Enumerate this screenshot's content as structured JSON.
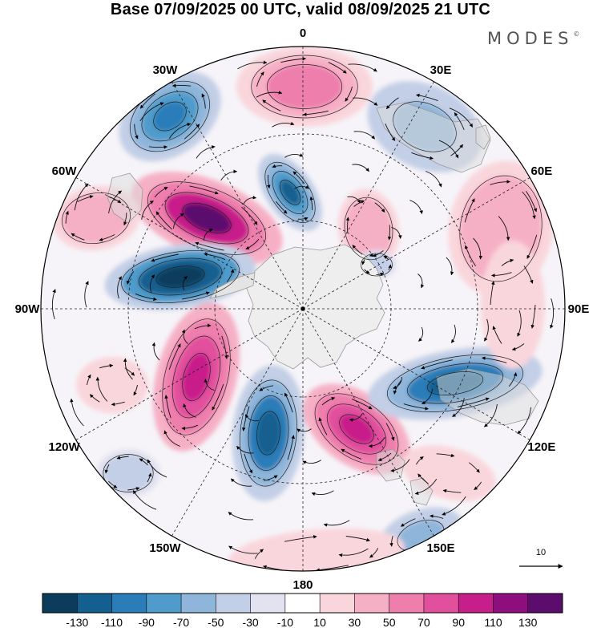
{
  "title": "Base 07/09/2025 00 UTC, valid 08/09/2025 21 UTC",
  "brand": "MODES",
  "brand_mark": "©",
  "longitude_labels": [
    "0",
    "30E",
    "60E",
    "90E",
    "120E",
    "150E",
    "180",
    "150W",
    "120W",
    "90W",
    "60W",
    "30W"
  ],
  "reference_vector_value": "10",
  "colorbar": {
    "labels": [
      "-130",
      "-110",
      "-90",
      "-70",
      "-50",
      "-30",
      "-10",
      "10",
      "30",
      "50",
      "70",
      "90",
      "110",
      "130"
    ],
    "colors": [
      "#0c3c5c",
      "#135f8f",
      "#2a7db8",
      "#4f9bcb",
      "#8fb6da",
      "#c3cfe6",
      "#e3e2f0",
      "#ffffff",
      "#f9d5dc",
      "#f6b0c6",
      "#ee7fad",
      "#e14f9d",
      "#c71f8a",
      "#8e0e7e",
      "#5a0d6d"
    ]
  },
  "icons": {
    "pole": "pole-dot-icon",
    "reference_arrow": "reference-arrow-icon"
  }
}
